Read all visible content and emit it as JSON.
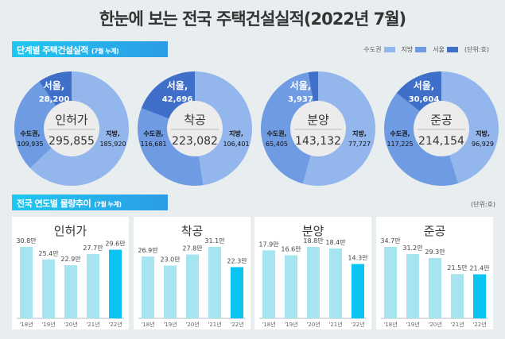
{
  "title": "한눈에 보는 전국 주택건설실적(2022년 7월)",
  "section1": {
    "label": "단계별 주택건설실적",
    "sub": "(7월 누계)",
    "unit": "(단위:호)"
  },
  "legend": [
    {
      "label": "수도권",
      "color": "#93b6ec"
    },
    {
      "label": "지방",
      "color": "#6f9be2"
    },
    {
      "label": "서울",
      "color": "#3f6fc8"
    }
  ],
  "section2": {
    "label": "전국 연도별 물량추이",
    "sub": "(7월 누계)",
    "unit": "(단위:호)"
  },
  "chart_data": [
    {
      "type": "pie",
      "title": "인허가",
      "total": "295,855",
      "slices": [
        {
          "name": "지방",
          "value": 185920,
          "label": "185,920"
        },
        {
          "name": "수도권",
          "value": 109935,
          "label": "109,935"
        },
        {
          "name": "서울",
          "value": 28200,
          "label": "28,200"
        }
      ]
    },
    {
      "type": "pie",
      "title": "착공",
      "total": "223,082",
      "slices": [
        {
          "name": "지방",
          "value": 106401,
          "label": "106,401"
        },
        {
          "name": "수도권",
          "value": 116681,
          "label": "116,681"
        },
        {
          "name": "서울",
          "value": 42696,
          "label": "42,696"
        }
      ]
    },
    {
      "type": "pie",
      "title": "분양",
      "total": "143,132",
      "slices": [
        {
          "name": "지방",
          "value": 77727,
          "label": "77,727"
        },
        {
          "name": "수도권",
          "value": 65405,
          "label": "65,405"
        },
        {
          "name": "서울",
          "value": 3937,
          "label": "3,937"
        }
      ]
    },
    {
      "type": "pie",
      "title": "준공",
      "total": "214,154",
      "slices": [
        {
          "name": "지방",
          "value": 96929,
          "label": "96,929"
        },
        {
          "name": "수도권",
          "value": 117225,
          "label": "117,225"
        },
        {
          "name": "서울",
          "value": 30604,
          "label": "30,604"
        }
      ]
    },
    {
      "type": "bar",
      "title": "인허가",
      "categories": [
        "'18년",
        "'19년",
        "'20년",
        "'21년",
        "'22년"
      ],
      "values": [
        30.8,
        25.4,
        22.9,
        27.7,
        29.6
      ],
      "labels": [
        "30.8만",
        "25.4만",
        "22.9만",
        "27.7만",
        "29.6만"
      ]
    },
    {
      "type": "bar",
      "title": "착공",
      "categories": [
        "'18년",
        "'19년",
        "'20년",
        "'21년",
        "'22년"
      ],
      "values": [
        26.9,
        23.0,
        27.8,
        31.1,
        22.3
      ],
      "labels": [
        "26.9만",
        "23.0만",
        "27.8만",
        "31.1만",
        "22.3만"
      ]
    },
    {
      "type": "bar",
      "title": "분양",
      "categories": [
        "'18년",
        "'19년",
        "'20년",
        "'21년",
        "'22년"
      ],
      "values": [
        17.9,
        16.6,
        18.8,
        18.4,
        14.3
      ],
      "labels": [
        "17.9만",
        "16.6만",
        "18.8만",
        "18.4만",
        "14.3만"
      ]
    },
    {
      "type": "bar",
      "title": "준공",
      "categories": [
        "'18년",
        "'19년",
        "'20년",
        "'21년",
        "'22년"
      ],
      "values": [
        34.7,
        31.2,
        29.3,
        21.5,
        21.4
      ],
      "labels": [
        "34.7만",
        "31.2만",
        "29.3만",
        "21.5만",
        "21.4만"
      ]
    }
  ],
  "colors": {
    "bar": "#a6e4f0",
    "bar_current": "#0cc4f2",
    "region_capital": "#93b6ec",
    "region_local": "#6f9be2",
    "seoul": "#3f6fc8"
  }
}
